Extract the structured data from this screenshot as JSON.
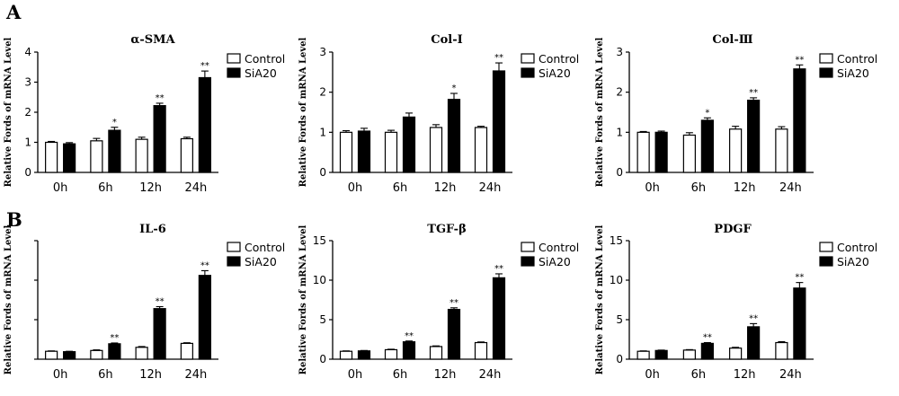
{
  "panel_labels": [
    "A",
    "B"
  ],
  "legend": [
    {
      "label": "Control",
      "color": "#ffffff"
    },
    {
      "label": "SiA20",
      "color": "#000000"
    }
  ],
  "chart_data": [
    {
      "type": "bar",
      "panel": "A",
      "title": "α-SMA",
      "ylabel": "Relative Fords of mRNA Level",
      "categories": [
        "0h",
        "6h",
        "12h",
        "24h"
      ],
      "ylim": [
        0,
        4
      ],
      "yticks": [
        "0",
        "1",
        "2",
        "3",
        "4"
      ],
      "series": [
        {
          "name": "Control",
          "values": [
            1.0,
            1.05,
            1.1,
            1.12
          ],
          "errors": [
            0.03,
            0.08,
            0.07,
            0.05
          ],
          "significance": [
            "",
            "",
            "",
            ""
          ]
        },
        {
          "name": "SiA20",
          "values": [
            0.95,
            1.4,
            2.22,
            3.15
          ],
          "errors": [
            0.04,
            0.1,
            0.08,
            0.22
          ],
          "significance": [
            "",
            "*",
            "**",
            "**"
          ]
        }
      ]
    },
    {
      "type": "bar",
      "panel": "A",
      "title": "Col-I",
      "ylabel": "Relative Fords of mRNA Level",
      "categories": [
        "0h",
        "6h",
        "12h",
        "24h"
      ],
      "ylim": [
        0,
        3
      ],
      "yticks": [
        "0",
        "1",
        "2",
        "3"
      ],
      "series": [
        {
          "name": "Control",
          "values": [
            1.0,
            1.0,
            1.12,
            1.12
          ],
          "errors": [
            0.04,
            0.05,
            0.07,
            0.03
          ],
          "significance": [
            "",
            "",
            "",
            ""
          ]
        },
        {
          "name": "SiA20",
          "values": [
            1.03,
            1.38,
            1.82,
            2.53
          ],
          "errors": [
            0.07,
            0.1,
            0.15,
            0.2
          ],
          "significance": [
            "",
            "",
            "*",
            "**"
          ]
        }
      ]
    },
    {
      "type": "bar",
      "panel": "A",
      "title": "Col-Ⅲ",
      "ylabel": "Relative Fords of mRNA Level",
      "categories": [
        "0h",
        "6h",
        "12h",
        "24h"
      ],
      "ylim": [
        0,
        3
      ],
      "yticks": [
        "0",
        "1",
        "2",
        "3"
      ],
      "series": [
        {
          "name": "Control",
          "values": [
            1.0,
            0.93,
            1.08,
            1.08
          ],
          "errors": [
            0.02,
            0.06,
            0.07,
            0.06
          ],
          "significance": [
            "",
            "",
            "",
            ""
          ]
        },
        {
          "name": "SiA20",
          "values": [
            1.0,
            1.3,
            1.8,
            2.58
          ],
          "errors": [
            0.03,
            0.06,
            0.06,
            0.1
          ],
          "significance": [
            "",
            "*",
            "**",
            "**"
          ]
        }
      ]
    },
    {
      "type": "bar",
      "panel": "B",
      "title": "IL-6",
      "ylabel": "Relative Fords of mRNA Level",
      "categories": [
        "0h",
        "6h",
        "12h",
        "24h"
      ],
      "ylim": [
        0,
        15
      ],
      "yticks": [
        "",
        "",
        "",
        ""
      ],
      "series": [
        {
          "name": "Control",
          "values": [
            1.0,
            1.1,
            1.5,
            2.0
          ],
          "errors": [
            0.05,
            0.08,
            0.1,
            0.08
          ],
          "significance": [
            "",
            "",
            "",
            ""
          ]
        },
        {
          "name": "SiA20",
          "values": [
            0.95,
            1.95,
            6.4,
            10.6
          ],
          "errors": [
            0.05,
            0.1,
            0.25,
            0.6
          ],
          "significance": [
            "",
            "**",
            "**",
            "**"
          ]
        }
      ]
    },
    {
      "type": "bar",
      "panel": "B",
      "title": "TGF-β",
      "ylabel": "Relative Fords of mRNA Level",
      "categories": [
        "0h",
        "6h",
        "12h",
        "24h"
      ],
      "ylim": [
        0,
        15
      ],
      "yticks": [
        "0",
        "5",
        "10",
        "15"
      ],
      "series": [
        {
          "name": "Control",
          "values": [
            1.0,
            1.2,
            1.6,
            2.1
          ],
          "errors": [
            0.05,
            0.06,
            0.08,
            0.08
          ],
          "significance": [
            "",
            "",
            "",
            ""
          ]
        },
        {
          "name": "SiA20",
          "values": [
            1.05,
            2.2,
            6.3,
            10.3
          ],
          "errors": [
            0.05,
            0.1,
            0.2,
            0.5
          ],
          "significance": [
            "",
            "**",
            "**",
            "**"
          ]
        }
      ]
    },
    {
      "type": "bar",
      "panel": "B",
      "title": "PDGF",
      "ylabel": "Relative Fords of mRNA Level",
      "categories": [
        "0h",
        "6h",
        "12h",
        "24h"
      ],
      "ylim": [
        0,
        15
      ],
      "yticks": [
        "0",
        "5",
        "10",
        "15"
      ],
      "series": [
        {
          "name": "Control",
          "values": [
            1.0,
            1.15,
            1.4,
            2.1
          ],
          "errors": [
            0.05,
            0.06,
            0.1,
            0.12
          ],
          "significance": [
            "",
            "",
            "",
            ""
          ]
        },
        {
          "name": "SiA20",
          "values": [
            1.1,
            2.0,
            4.1,
            9.0
          ],
          "errors": [
            0.05,
            0.1,
            0.4,
            0.7
          ],
          "significance": [
            "",
            "**",
            "**",
            "**"
          ]
        }
      ]
    }
  ]
}
